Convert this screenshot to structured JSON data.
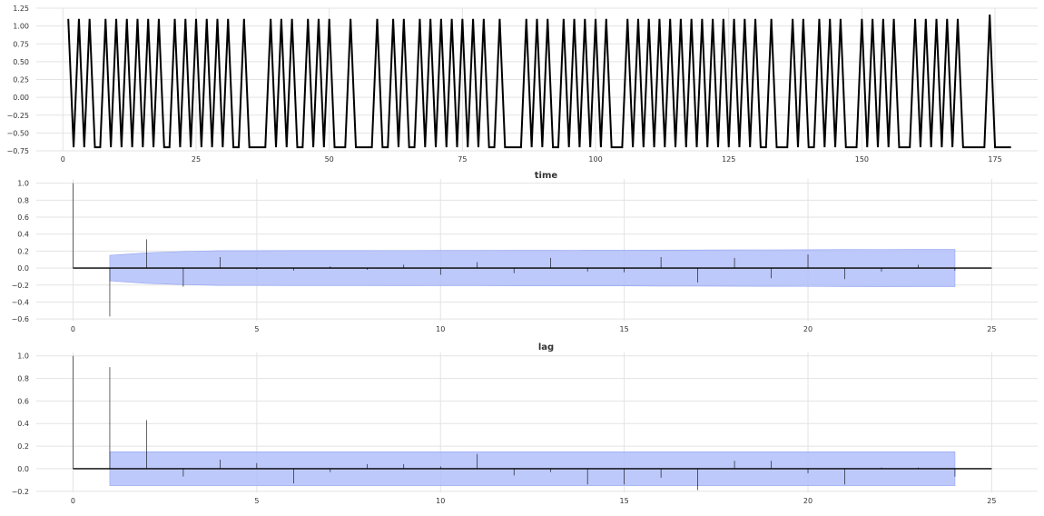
{
  "chart_data": [
    {
      "type": "line",
      "title": "",
      "xlabel": "time",
      "ylabel": "",
      "xlim": [
        -5,
        183
      ],
      "ylim": [
        -0.75,
        1.25
      ],
      "xticks": [
        0,
        25,
        50,
        75,
        100,
        125,
        150,
        175
      ],
      "yticks": [
        -0.75,
        -0.5,
        -0.25,
        0.0,
        0.25,
        0.5,
        0.75,
        1.0,
        1.25
      ],
      "ytick_labels": [
        "−0.75",
        "−0.50",
        "−0.25",
        "0.00",
        "0.25",
        "0.50",
        "0.75",
        "1.00",
        "1.25"
      ],
      "grid": true,
      "line_color": "#000000",
      "series": [
        {
          "low_value": -0.7,
          "peak_value": 1.1,
          "start": 1,
          "end": 178,
          "peaks": [
            1,
            3,
            5,
            8,
            10,
            12,
            14,
            16,
            18,
            21,
            23,
            25,
            27,
            29,
            31,
            34,
            39,
            41,
            43,
            46,
            48,
            50,
            54,
            59,
            62,
            64,
            67,
            69,
            71,
            73,
            75,
            77,
            79,
            82,
            87,
            89,
            91,
            94,
            96,
            98,
            100,
            102,
            106,
            108,
            110,
            112,
            114,
            116,
            118,
            120,
            122,
            124,
            126,
            128,
            130,
            133,
            137,
            139,
            142,
            144,
            146,
            150,
            152,
            154,
            156,
            160,
            162,
            164,
            166,
            168,
            174
          ],
          "peak_values": {
            "174": 1.16
          }
        }
      ]
    },
    {
      "type": "bar",
      "title": "",
      "xlabel": "lag",
      "ylabel": "",
      "xlim": [
        -1,
        26.25
      ],
      "ylim": [
        -0.62,
        1.05
      ],
      "xticks": [
        0,
        5,
        10,
        15,
        20,
        25
      ],
      "yticks": [
        -0.6,
        -0.4,
        -0.2,
        0.0,
        0.2,
        0.4,
        0.6,
        0.8,
        1.0
      ],
      "ytick_labels": [
        "−0.6",
        "−0.4",
        "−0.2",
        "0.0",
        "0.2",
        "0.4",
        "0.6",
        "0.8",
        "1.0"
      ],
      "grid": true,
      "x": [
        0,
        1,
        2,
        3,
        4,
        5,
        6,
        7,
        8,
        9,
        10,
        11,
        12,
        13,
        14,
        15,
        16,
        17,
        18,
        19,
        20,
        21,
        22,
        23,
        24
      ],
      "values": [
        1.0,
        -0.57,
        0.34,
        -0.22,
        0.13,
        -0.02,
        -0.03,
        0.02,
        -0.02,
        0.04,
        -0.08,
        0.07,
        -0.06,
        0.12,
        -0.04,
        -0.05,
        0.13,
        -0.17,
        0.12,
        -0.12,
        0.16,
        -0.13,
        -0.04,
        0.04,
        -0.03
      ],
      "confidence_band": {
        "x": [
          1,
          2,
          3,
          4,
          5,
          6,
          7,
          8,
          9,
          10,
          11,
          12,
          13,
          14,
          15,
          16,
          17,
          18,
          19,
          20,
          21,
          22,
          23,
          24
        ],
        "upper": [
          0.15,
          0.18,
          0.195,
          0.205,
          0.205,
          0.206,
          0.206,
          0.206,
          0.207,
          0.208,
          0.208,
          0.209,
          0.209,
          0.21,
          0.21,
          0.212,
          0.213,
          0.214,
          0.215,
          0.216,
          0.218,
          0.219,
          0.22,
          0.22
        ],
        "color": "#aebcfa"
      }
    },
    {
      "type": "bar",
      "title": "",
      "xlabel": "",
      "ylabel": "",
      "xlim": [
        -1,
        26.25
      ],
      "ylim": [
        -0.21,
        1.03
      ],
      "xticks": [
        0,
        5,
        10,
        15,
        20,
        25
      ],
      "yticks": [
        -0.2,
        0.0,
        0.2,
        0.4,
        0.6,
        0.8,
        1.0
      ],
      "ytick_labels": [
        "−0.2",
        "0.0",
        "0.2",
        "0.4",
        "0.6",
        "0.8",
        "1.0"
      ],
      "grid": true,
      "x": [
        0,
        1,
        2,
        3,
        4,
        5,
        6,
        7,
        8,
        9,
        10,
        11,
        12,
        13,
        14,
        15,
        16,
        17,
        18,
        19,
        20,
        21,
        22,
        23,
        24
      ],
      "values": [
        1.0,
        0.9,
        0.43,
        -0.07,
        0.08,
        0.05,
        -0.13,
        -0.03,
        0.04,
        0.04,
        0.02,
        0.13,
        -0.06,
        -0.03,
        -0.14,
        -0.14,
        -0.08,
        -0.19,
        0.07,
        0.07,
        -0.04,
        -0.14,
        0.01,
        0.01,
        -0.07
      ],
      "confidence_band": {
        "x": [
          1,
          2,
          3,
          4,
          5,
          6,
          7,
          8,
          9,
          10,
          11,
          12,
          13,
          14,
          15,
          16,
          17,
          18,
          19,
          20,
          21,
          22,
          23,
          24
        ],
        "upper": [
          0.15,
          0.15,
          0.15,
          0.15,
          0.15,
          0.15,
          0.15,
          0.15,
          0.15,
          0.15,
          0.15,
          0.15,
          0.15,
          0.15,
          0.15,
          0.15,
          0.15,
          0.15,
          0.15,
          0.15,
          0.15,
          0.15,
          0.15,
          0.15
        ],
        "color": "#aebcfa"
      }
    }
  ]
}
